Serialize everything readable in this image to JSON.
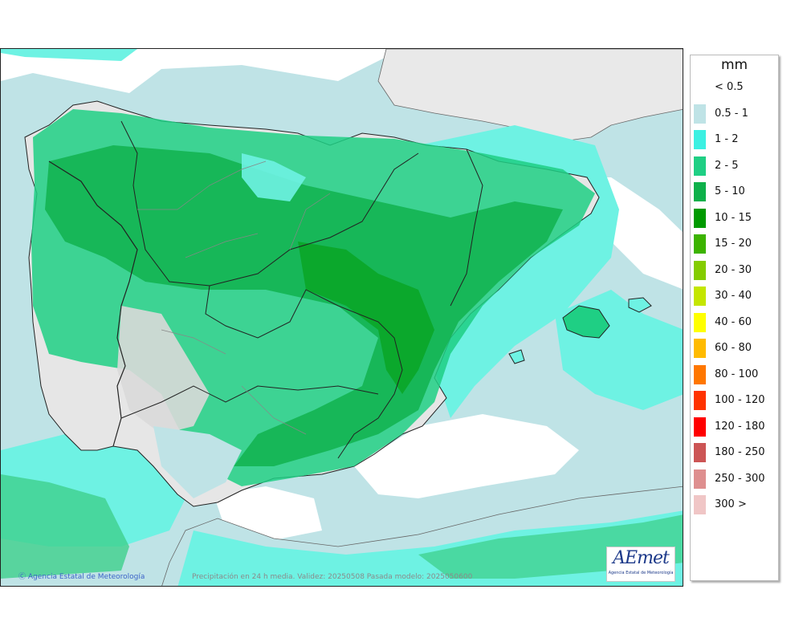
{
  "legend": {
    "unit": "mm",
    "items": [
      {
        "label": "< 0.5",
        "color": "#ffffff"
      },
      {
        "label": "0.5 - 1",
        "color": "#bfe3e6"
      },
      {
        "label": "1 - 2",
        "color": "#3cf0e2"
      },
      {
        "label": "2 - 5",
        "color": "#1fcf84"
      },
      {
        "label": "5 - 10",
        "color": "#0eb04a"
      },
      {
        "label": "10 - 15",
        "color": "#009a00"
      },
      {
        "label": "15 - 20",
        "color": "#3cb300"
      },
      {
        "label": "20 - 30",
        "color": "#84cc00"
      },
      {
        "label": "30 - 40",
        "color": "#c4e600"
      },
      {
        "label": "40 - 60",
        "color": "#ffff00"
      },
      {
        "label": "60 - 80",
        "color": "#ffbb00"
      },
      {
        "label": "80 - 100",
        "color": "#ff7700"
      },
      {
        "label": "100 - 120",
        "color": "#ff3300"
      },
      {
        "label": "120 - 180",
        "color": "#ff0000"
      },
      {
        "label": "180 - 250",
        "color": "#cc5555"
      },
      {
        "label": "250 - 300",
        "color": "#de8f8f"
      },
      {
        "label": "300 >",
        "color": "#f0c6c6"
      }
    ]
  },
  "footer": {
    "credit": "Agencia Estatal de Meteorología",
    "description": "Precipitación en 24 h media. Validez: 20250508 Pasada modelo: 2025050600"
  },
  "logo": {
    "word": "AEmet",
    "subtitle": "Agencia Estatal de Meteorología"
  }
}
